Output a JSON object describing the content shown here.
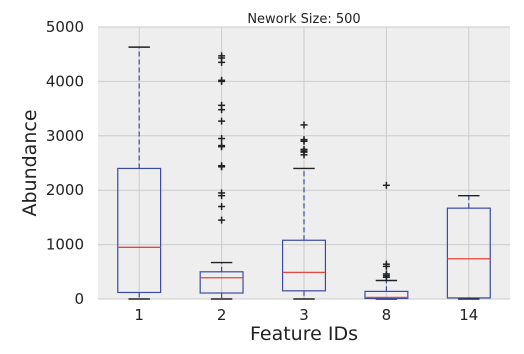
{
  "chart_data": {
    "type": "box",
    "title": "Nework Size: 500",
    "xlabel": "Feature IDs",
    "ylabel": "Abundance",
    "ylim": [
      0,
      5000
    ],
    "yticks": [
      0,
      1000,
      2000,
      3000,
      4000,
      5000
    ],
    "categories": [
      "1",
      "2",
      "3",
      "8",
      "14"
    ],
    "grid": true,
    "colors": {
      "background": "#eeeeee",
      "grid": "#cbcbcb",
      "box": "#3b4aa3",
      "median": "#e8453c",
      "whisker": "#3b4aa3",
      "flier": "#222222"
    },
    "boxes": [
      {
        "category": "1",
        "whislo": 0,
        "q1": 120,
        "med": 950,
        "q3": 2400,
        "whishi": 4630,
        "fliers": []
      },
      {
        "category": "2",
        "whislo": 0,
        "q1": 110,
        "med": 390,
        "q3": 500,
        "whishi": 670,
        "fliers": [
          1450,
          1700,
          1900,
          1950,
          2430,
          2450,
          2800,
          2820,
          2950,
          3270,
          3480,
          3560,
          4000,
          4020,
          4350,
          4430,
          4470
        ]
      },
      {
        "category": "3",
        "whislo": 0,
        "q1": 150,
        "med": 490,
        "q3": 1080,
        "whishi": 2400,
        "fliers": [
          2650,
          2700,
          2720,
          2750,
          2900,
          2930,
          3200
        ]
      },
      {
        "category": "8",
        "whislo": 0,
        "q1": 10,
        "med": 30,
        "q3": 140,
        "whishi": 340,
        "fliers": [
          400,
          430,
          460,
          600,
          640,
          2090
        ]
      },
      {
        "category": "14",
        "whislo": 0,
        "q1": 20,
        "med": 740,
        "q3": 1670,
        "whishi": 1900,
        "fliers": []
      }
    ]
  }
}
